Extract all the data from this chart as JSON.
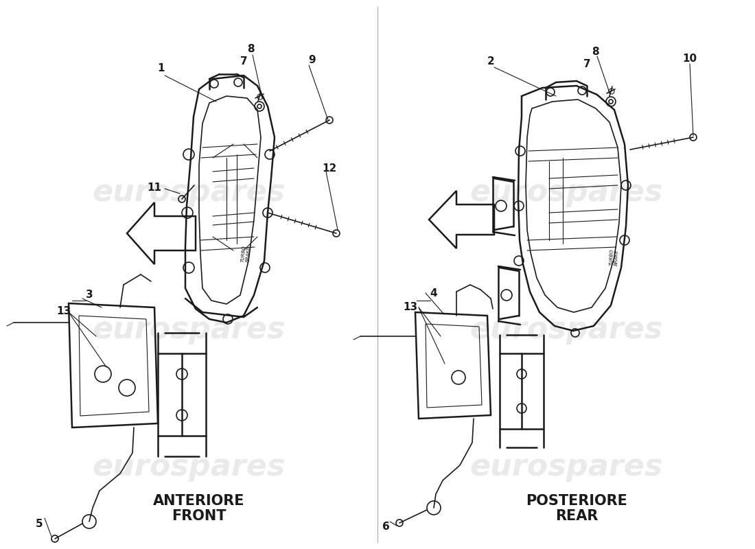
{
  "background_color": "#ffffff",
  "line_color": "#1a1a1a",
  "watermark": "eurospares",
  "left_label_line1": "ANTERIORE",
  "left_label_line2": "FRONT",
  "right_label_line1": "POSTERIORE",
  "right_label_line2": "REAR",
  "lw_thin": 0.8,
  "lw_main": 1.2,
  "lw_thick": 1.8,
  "num_fontsize": 11,
  "label_fontsize": 15
}
